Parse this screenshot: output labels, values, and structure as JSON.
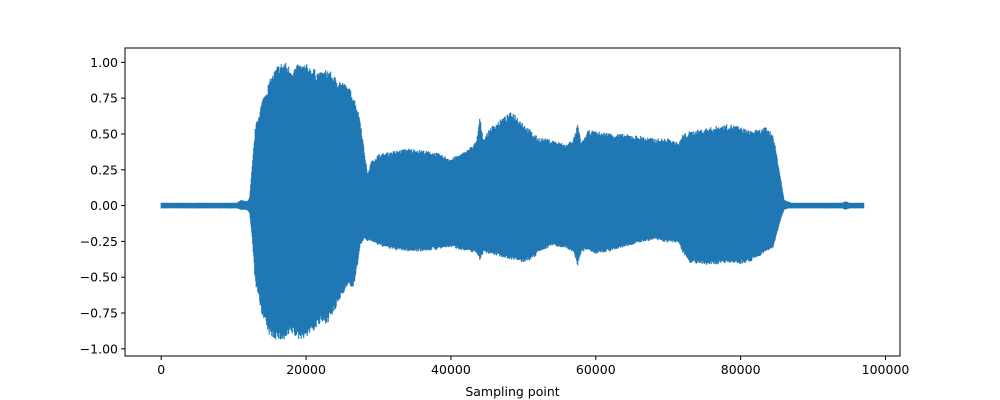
{
  "chart_data": {
    "type": "area",
    "title": "",
    "xlabel": "Sampling point",
    "ylabel": "",
    "xlim": [
      -5000,
      102000
    ],
    "ylim": [
      -1.05,
      1.1
    ],
    "grid": false,
    "legend": "none",
    "series_color": "#1f77b4",
    "x_ticks": [
      {
        "value": 0,
        "label": "0"
      },
      {
        "value": 20000,
        "label": "20000"
      },
      {
        "value": 40000,
        "label": "40000"
      },
      {
        "value": 60000,
        "label": "60000"
      },
      {
        "value": 80000,
        "label": "80000"
      },
      {
        "value": 100000,
        "label": "100000"
      }
    ],
    "y_ticks": [
      {
        "value": 1.0,
        "label": "1.00"
      },
      {
        "value": 0.75,
        "label": "0.75"
      },
      {
        "value": 0.5,
        "label": "0.50"
      },
      {
        "value": 0.25,
        "label": "0.25"
      },
      {
        "value": 0.0,
        "label": "0.00"
      },
      {
        "value": -0.25,
        "label": "−0.25"
      },
      {
        "value": -0.5,
        "label": "−0.50"
      },
      {
        "value": -0.75,
        "label": "−0.75"
      },
      {
        "value": -1.0,
        "label": "−1.00"
      }
    ],
    "envelope": {
      "x": [
        0,
        9000,
        10500,
        11000,
        11800,
        12200,
        12600,
        13000,
        14000,
        15000,
        16000,
        17000,
        18000,
        19000,
        20000,
        21000,
        22000,
        23000,
        24000,
        25000,
        26000,
        26500,
        27000,
        27500,
        28000,
        28500,
        29000,
        30000,
        32000,
        34000,
        36000,
        38000,
        40000,
        42000,
        43500,
        44000,
        44500,
        45500,
        47000,
        48500,
        50000,
        51500,
        52000,
        54000,
        56000,
        57000,
        57500,
        58000,
        59000,
        60000,
        62000,
        64000,
        66000,
        68000,
        70000,
        71500,
        72000,
        73000,
        75000,
        77000,
        78500,
        79500,
        81000,
        82500,
        83500,
        84500,
        85500,
        86000,
        86500,
        87000,
        88000,
        90000,
        92000,
        94000,
        94500,
        95000,
        97000
      ],
      "upper": [
        0.02,
        0.02,
        0.02,
        0.04,
        0.03,
        0.05,
        0.3,
        0.55,
        0.75,
        0.88,
        0.98,
        1.01,
        0.96,
        0.99,
        0.99,
        0.96,
        0.93,
        0.96,
        0.9,
        0.87,
        0.82,
        0.78,
        0.7,
        0.6,
        0.4,
        0.22,
        0.31,
        0.36,
        0.38,
        0.4,
        0.39,
        0.37,
        0.33,
        0.38,
        0.45,
        0.62,
        0.47,
        0.55,
        0.61,
        0.66,
        0.58,
        0.5,
        0.48,
        0.46,
        0.43,
        0.48,
        0.57,
        0.44,
        0.53,
        0.52,
        0.51,
        0.5,
        0.49,
        0.47,
        0.47,
        0.44,
        0.5,
        0.52,
        0.54,
        0.56,
        0.57,
        0.56,
        0.53,
        0.53,
        0.55,
        0.5,
        0.2,
        0.04,
        0.03,
        0.02,
        0.02,
        0.02,
        0.02,
        0.02,
        0.03,
        0.02,
        0.02
      ],
      "lower": [
        -0.02,
        -0.02,
        -0.02,
        -0.03,
        -0.03,
        -0.05,
        -0.25,
        -0.55,
        -0.78,
        -0.92,
        -0.94,
        -0.95,
        -0.9,
        -0.94,
        -0.92,
        -0.88,
        -0.83,
        -0.82,
        -0.74,
        -0.62,
        -0.55,
        -0.6,
        -0.45,
        -0.28,
        -0.24,
        -0.25,
        -0.25,
        -0.28,
        -0.31,
        -0.32,
        -0.32,
        -0.31,
        -0.29,
        -0.32,
        -0.33,
        -0.38,
        -0.33,
        -0.34,
        -0.36,
        -0.38,
        -0.4,
        -0.37,
        -0.33,
        -0.28,
        -0.3,
        -0.33,
        -0.42,
        -0.33,
        -0.31,
        -0.34,
        -0.32,
        -0.29,
        -0.26,
        -0.24,
        -0.26,
        -0.26,
        -0.33,
        -0.4,
        -0.42,
        -0.41,
        -0.4,
        -0.41,
        -0.4,
        -0.36,
        -0.32,
        -0.3,
        -0.1,
        -0.03,
        -0.02,
        -0.02,
        -0.02,
        -0.02,
        -0.02,
        -0.02,
        -0.03,
        -0.02,
        -0.02
      ]
    }
  }
}
